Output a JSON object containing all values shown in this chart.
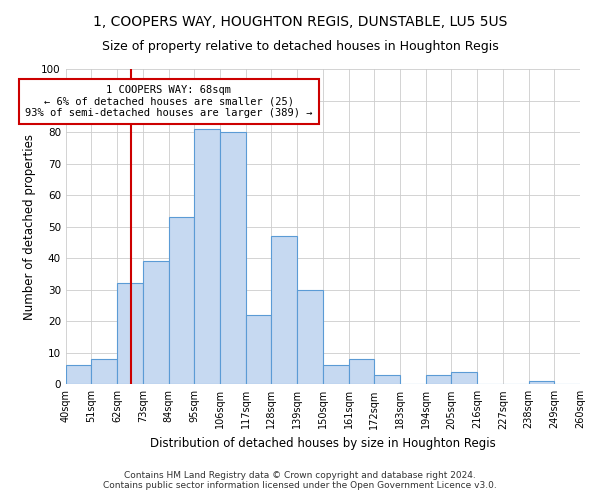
{
  "title": "1, COOPERS WAY, HOUGHTON REGIS, DUNSTABLE, LU5 5US",
  "subtitle": "Size of property relative to detached houses in Houghton Regis",
  "xlabel": "Distribution of detached houses by size in Houghton Regis",
  "ylabel": "Number of detached properties",
  "bin_edges": [
    40,
    51,
    62,
    73,
    84,
    95,
    106,
    117,
    128,
    139,
    150,
    161,
    172,
    183,
    194,
    205,
    216,
    227,
    238,
    249,
    260
  ],
  "counts": [
    6,
    8,
    32,
    39,
    53,
    81,
    80,
    22,
    47,
    30,
    6,
    8,
    3,
    0,
    3,
    4,
    0,
    0,
    1,
    0
  ],
  "bar_color": "#c6d9f1",
  "bar_edge_color": "#5b9bd5",
  "vline_x": 68,
  "vline_color": "#cc0000",
  "annotation_title": "1 COOPERS WAY: 68sqm",
  "annotation_line1": "← 6% of detached houses are smaller (25)",
  "annotation_line2": "93% of semi-detached houses are larger (389) →",
  "annotation_box_color": "#cc0000",
  "annotation_bg": "#ffffff",
  "ylim": [
    0,
    100
  ],
  "footer1": "Contains HM Land Registry data © Crown copyright and database right 2024.",
  "footer2": "Contains public sector information licensed under the Open Government Licence v3.0.",
  "background_color": "#ffffff",
  "grid_color": "#cccccc",
  "title_fontsize": 10,
  "subtitle_fontsize": 9,
  "axis_label_fontsize": 8.5,
  "tick_label_fontsize": 7,
  "footer_fontsize": 6.5
}
